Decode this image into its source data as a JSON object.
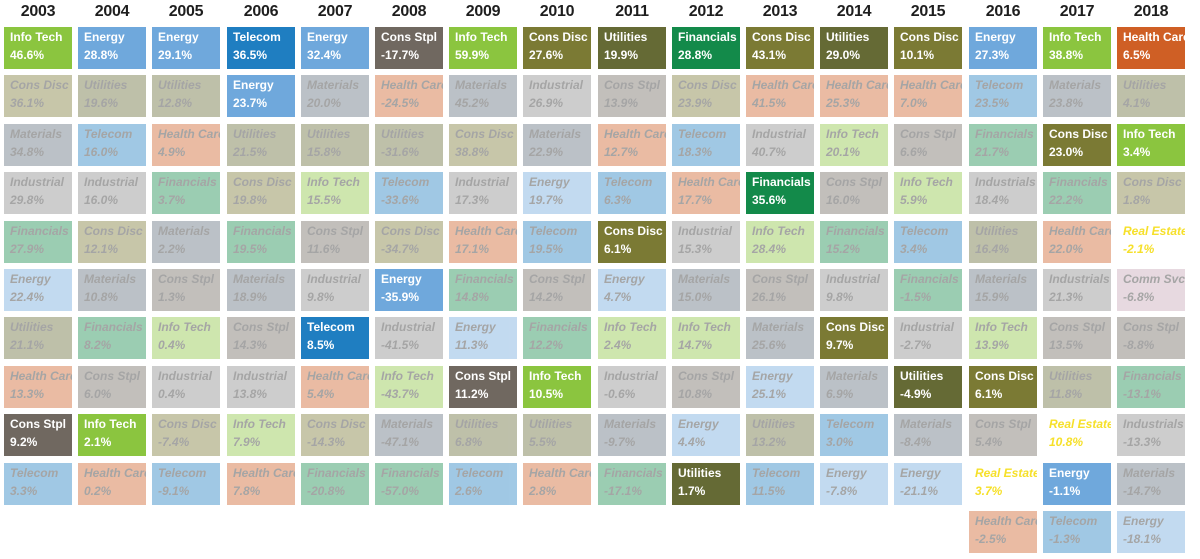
{
  "chart_data": {
    "type": "table",
    "years": [
      "2003",
      "2004",
      "2005",
      "2006",
      "2007",
      "2008",
      "2009",
      "2010",
      "2011",
      "2012",
      "2013",
      "2014",
      "2015",
      "2016",
      "2017",
      "2018"
    ],
    "sector_colors": {
      "Info Tech": "#8bc53f",
      "Energy": "#6fa8dc",
      "Telecom": "#1f7ec1",
      "Cons Stpl": "#706860",
      "Cons Disc": "#7b7a34",
      "Utilities": "#656a35",
      "Financials": "#138a4a",
      "Health Care": "#cf5f25",
      "Materials": "#5e6d7c",
      "Industrial": "#8a8a8a",
      "Real Estate": "#ffffff",
      "Comm Svcs": "#c8a6b6"
    },
    "columns": [
      {
        "year": "2003",
        "cells": [
          {
            "sector": "Info Tech",
            "value": "46.6%",
            "hi": true
          },
          {
            "sector": "Cons Disc",
            "value": "36.1%"
          },
          {
            "sector": "Materials",
            "value": "34.8%"
          },
          {
            "sector": "Industrial",
            "value": "29.8%"
          },
          {
            "sector": "Financials",
            "value": "27.9%"
          },
          {
            "sector": "Energy",
            "value": "22.4%"
          },
          {
            "sector": "Utilities",
            "value": "21.1%"
          },
          {
            "sector": "Health Care",
            "value": "13.3%"
          },
          {
            "sector": "Cons Stpl",
            "value": "9.2%",
            "hi": true
          },
          {
            "sector": "Telecom",
            "value": "3.3%"
          }
        ]
      },
      {
        "year": "2004",
        "cells": [
          {
            "sector": "Energy",
            "value": "28.8%",
            "hi": true
          },
          {
            "sector": "Utilities",
            "value": "19.6%"
          },
          {
            "sector": "Telecom",
            "value": "16.0%"
          },
          {
            "sector": "Industrial",
            "value": "16.0%"
          },
          {
            "sector": "Cons Disc",
            "value": "12.1%"
          },
          {
            "sector": "Materials",
            "value": "10.8%"
          },
          {
            "sector": "Financials",
            "value": "8.2%"
          },
          {
            "sector": "Cons Stpl",
            "value": "6.0%"
          },
          {
            "sector": "Info Tech",
            "value": "2.1%",
            "hi": true
          },
          {
            "sector": "Health Care",
            "value": "0.2%"
          }
        ]
      },
      {
        "year": "2005",
        "cells": [
          {
            "sector": "Energy",
            "value": "29.1%",
            "hi": true
          },
          {
            "sector": "Utilities",
            "value": "12.8%"
          },
          {
            "sector": "Health Care",
            "value": "4.9%"
          },
          {
            "sector": "Financials",
            "value": "3.7%"
          },
          {
            "sector": "Materials",
            "value": "2.2%"
          },
          {
            "sector": "Cons Stpl",
            "value": "1.3%"
          },
          {
            "sector": "Info Tech",
            "value": "0.4%"
          },
          {
            "sector": "Industrial",
            "value": "0.4%"
          },
          {
            "sector": "Cons Disc",
            "value": "-7.4%"
          },
          {
            "sector": "Telecom",
            "value": "-9.1%"
          }
        ]
      },
      {
        "year": "2006",
        "cells": [
          {
            "sector": "Telecom",
            "value": "36.5%",
            "hi": true
          },
          {
            "sector": "Energy",
            "value": "23.7%",
            "hi": true
          },
          {
            "sector": "Utilities",
            "value": "21.5%"
          },
          {
            "sector": "Cons Disc",
            "value": "19.8%"
          },
          {
            "sector": "Financials",
            "value": "19.5%"
          },
          {
            "sector": "Materials",
            "value": "18.9%"
          },
          {
            "sector": "Cons Stpl",
            "value": "14.3%"
          },
          {
            "sector": "Industrial",
            "value": "13.8%"
          },
          {
            "sector": "Info Tech",
            "value": "7.9%"
          },
          {
            "sector": "Health Care",
            "value": "7.8%"
          }
        ]
      },
      {
        "year": "2007",
        "cells": [
          {
            "sector": "Energy",
            "value": "32.4%",
            "hi": true
          },
          {
            "sector": "Materials",
            "value": "20.0%"
          },
          {
            "sector": "Utilities",
            "value": "15.8%"
          },
          {
            "sector": "Info Tech",
            "value": "15.5%"
          },
          {
            "sector": "Cons Stpl",
            "value": "11.6%"
          },
          {
            "sector": "Industrial",
            "value": "9.8%"
          },
          {
            "sector": "Telecom",
            "value": "8.5%",
            "hi": true
          },
          {
            "sector": "Health Care",
            "value": "5.4%"
          },
          {
            "sector": "Cons Disc",
            "value": "-14.3%"
          },
          {
            "sector": "Financials",
            "value": "-20.8%"
          }
        ]
      },
      {
        "year": "2008",
        "cells": [
          {
            "sector": "Cons Stpl",
            "value": "-17.7%",
            "hi": true
          },
          {
            "sector": "Health Care",
            "value": "-24.5%"
          },
          {
            "sector": "Utilities",
            "value": "-31.6%"
          },
          {
            "sector": "Telecom",
            "value": "-33.6%"
          },
          {
            "sector": "Cons Disc",
            "value": "-34.7%"
          },
          {
            "sector": "Energy",
            "value": "-35.9%",
            "hi": true
          },
          {
            "sector": "Industrial",
            "value": "-41.5%"
          },
          {
            "sector": "Info Tech",
            "value": "-43.7%"
          },
          {
            "sector": "Materials",
            "value": "-47.1%"
          },
          {
            "sector": "Financials",
            "value": "-57.0%"
          }
        ]
      },
      {
        "year": "2009",
        "cells": [
          {
            "sector": "Info Tech",
            "value": "59.9%",
            "hi": true
          },
          {
            "sector": "Materials",
            "value": "45.2%"
          },
          {
            "sector": "Cons Disc",
            "value": "38.8%"
          },
          {
            "sector": "Industrial",
            "value": "17.3%"
          },
          {
            "sector": "Health Care",
            "value": "17.1%"
          },
          {
            "sector": "Financials",
            "value": "14.8%"
          },
          {
            "sector": "Energy",
            "value": "11.3%"
          },
          {
            "sector": "Cons Stpl",
            "value": "11.2%",
            "hi": true
          },
          {
            "sector": "Utilities",
            "value": "6.8%"
          },
          {
            "sector": "Telecom",
            "value": "2.6%"
          }
        ]
      },
      {
        "year": "2010",
        "cells": [
          {
            "sector": "Cons Disc",
            "value": "27.6%",
            "hi": true
          },
          {
            "sector": "Industrial",
            "value": "26.9%"
          },
          {
            "sector": "Materials",
            "value": "22.9%"
          },
          {
            "sector": "Energy",
            "value": "19.7%"
          },
          {
            "sector": "Telecom",
            "value": "19.5%"
          },
          {
            "sector": "Cons Stpl",
            "value": "14.2%"
          },
          {
            "sector": "Financials",
            "value": "12.2%"
          },
          {
            "sector": "Info Tech",
            "value": "10.5%",
            "hi": true
          },
          {
            "sector": "Utilities",
            "value": "5.5%"
          },
          {
            "sector": "Health Care",
            "value": "2.8%"
          }
        ]
      },
      {
        "year": "2011",
        "cells": [
          {
            "sector": "Utilities",
            "value": "19.9%",
            "hi": true
          },
          {
            "sector": "Cons Stpl",
            "value": "13.9%"
          },
          {
            "sector": "Health Care",
            "value": "12.7%"
          },
          {
            "sector": "Telecom",
            "value": "6.3%"
          },
          {
            "sector": "Cons Disc",
            "value": "6.1%",
            "hi": true
          },
          {
            "sector": "Energy",
            "value": "4.7%"
          },
          {
            "sector": "Info Tech",
            "value": "2.4%"
          },
          {
            "sector": "Industrial",
            "value": "-0.6%"
          },
          {
            "sector": "Materials",
            "value": "-9.7%"
          },
          {
            "sector": "Financials",
            "value": "-17.1%"
          }
        ]
      },
      {
        "year": "2012",
        "cells": [
          {
            "sector": "Financials",
            "value": "28.8%",
            "hi": true
          },
          {
            "sector": "Cons Disc",
            "value": "23.9%"
          },
          {
            "sector": "Telecom",
            "value": "18.3%"
          },
          {
            "sector": "Health Care",
            "value": "17.7%"
          },
          {
            "sector": "Industrial",
            "value": "15.3%"
          },
          {
            "sector": "Materials",
            "value": "15.0%"
          },
          {
            "sector": "Info Tech",
            "value": "14.7%"
          },
          {
            "sector": "Cons Stpl",
            "value": "10.8%"
          },
          {
            "sector": "Energy",
            "value": "4.4%"
          },
          {
            "sector": "Utilities",
            "value": "1.7%",
            "hi": true
          }
        ]
      },
      {
        "year": "2013",
        "cells": [
          {
            "sector": "Cons Disc",
            "value": "43.1%",
            "hi": true
          },
          {
            "sector": "Health Care",
            "value": "41.5%"
          },
          {
            "sector": "Industrial",
            "value": "40.7%"
          },
          {
            "sector": "Financials",
            "value": "35.6%",
            "hi": true
          },
          {
            "sector": "Info Tech",
            "value": "28.4%"
          },
          {
            "sector": "Cons Stpl",
            "value": "26.1%"
          },
          {
            "sector": "Materials",
            "value": "25.6%"
          },
          {
            "sector": "Energy",
            "value": "25.1%"
          },
          {
            "sector": "Utilities",
            "value": "13.2%"
          },
          {
            "sector": "Telecom",
            "value": "11.5%"
          }
        ]
      },
      {
        "year": "2014",
        "cells": [
          {
            "sector": "Utilities",
            "value": "29.0%",
            "hi": true
          },
          {
            "sector": "Health Care",
            "value": "25.3%"
          },
          {
            "sector": "Info Tech",
            "value": "20.1%"
          },
          {
            "sector": "Cons Stpl",
            "value": "16.0%"
          },
          {
            "sector": "Financials",
            "value": "15.2%"
          },
          {
            "sector": "Industrial",
            "value": "9.8%"
          },
          {
            "sector": "Cons Disc",
            "value": "9.7%",
            "hi": true
          },
          {
            "sector": "Materials",
            "value": "6.9%"
          },
          {
            "sector": "Telecom",
            "value": "3.0%"
          },
          {
            "sector": "Energy",
            "value": "-7.8%"
          }
        ]
      },
      {
        "year": "2015",
        "cells": [
          {
            "sector": "Cons Disc",
            "value": "10.1%",
            "hi": true
          },
          {
            "sector": "Health Care",
            "value": "7.0%"
          },
          {
            "sector": "Cons Stpl",
            "value": "6.6%"
          },
          {
            "sector": "Info Tech",
            "value": "5.9%"
          },
          {
            "sector": "Telecom",
            "value": "3.4%"
          },
          {
            "sector": "Financials",
            "value": "-1.5%"
          },
          {
            "sector": "Industrial",
            "value": "-2.7%"
          },
          {
            "sector": "Utilities",
            "value": "-4.9%",
            "hi": true
          },
          {
            "sector": "Materials",
            "value": "-8.4%"
          },
          {
            "sector": "Energy",
            "value": "-21.1%"
          }
        ]
      },
      {
        "year": "2016",
        "cells": [
          {
            "sector": "Energy",
            "value": "27.3%",
            "hi": true
          },
          {
            "sector": "Telecom",
            "value": "23.5%"
          },
          {
            "sector": "Financials",
            "value": "21.7%"
          },
          {
            "sector": "Industrials",
            "value": "18.4%"
          },
          {
            "sector": "Utilities",
            "value": "16.4%"
          },
          {
            "sector": "Materials",
            "value": "15.9%"
          },
          {
            "sector": "Info Tech",
            "value": "13.9%"
          },
          {
            "sector": "Cons Disc",
            "value": "6.1%",
            "hi": true
          },
          {
            "sector": "Cons Stpl",
            "value": "5.4%"
          },
          {
            "sector": "Real Estate",
            "value": "3.7%",
            "re": true
          },
          {
            "sector": "Health Care",
            "value": "-2.5%"
          }
        ]
      },
      {
        "year": "2017",
        "cells": [
          {
            "sector": "Info Tech",
            "value": "38.8%",
            "hi": true
          },
          {
            "sector": "Materials",
            "value": "23.8%"
          },
          {
            "sector": "Cons Disc",
            "value": "23.0%",
            "hi": true
          },
          {
            "sector": "Financials",
            "value": "22.2%"
          },
          {
            "sector": "Health Care",
            "value": "22.0%"
          },
          {
            "sector": "Industrials",
            "value": "21.3%"
          },
          {
            "sector": "Cons Stpl",
            "value": "13.5%"
          },
          {
            "sector": "Utilities",
            "value": "11.8%"
          },
          {
            "sector": "Real Estate",
            "value": "10.8%",
            "re": true
          },
          {
            "sector": "Energy",
            "value": "-1.1%",
            "hi": true
          },
          {
            "sector": "Telecom",
            "value": "-1.3%"
          }
        ]
      },
      {
        "year": "2018",
        "cells": [
          {
            "sector": "Health Care",
            "value": "6.5%",
            "hi": true
          },
          {
            "sector": "Utilities",
            "value": "4.1%"
          },
          {
            "sector": "Info Tech",
            "value": "3.4%",
            "hi": true
          },
          {
            "sector": "Cons Disc",
            "value": "1.8%"
          },
          {
            "sector": "Real Estate",
            "value": "-2.1%",
            "re": true
          },
          {
            "sector": "Comm Svcs",
            "value": "-6.8%"
          },
          {
            "sector": "Cons Stpl",
            "value": "-8.8%"
          },
          {
            "sector": "Financials",
            "value": "-13.1%"
          },
          {
            "sector": "Industrials",
            "value": "-13.3%"
          },
          {
            "sector": "Materials",
            "value": "-14.7%"
          },
          {
            "sector": "Energy",
            "value": "-18.1%"
          }
        ]
      }
    ]
  }
}
